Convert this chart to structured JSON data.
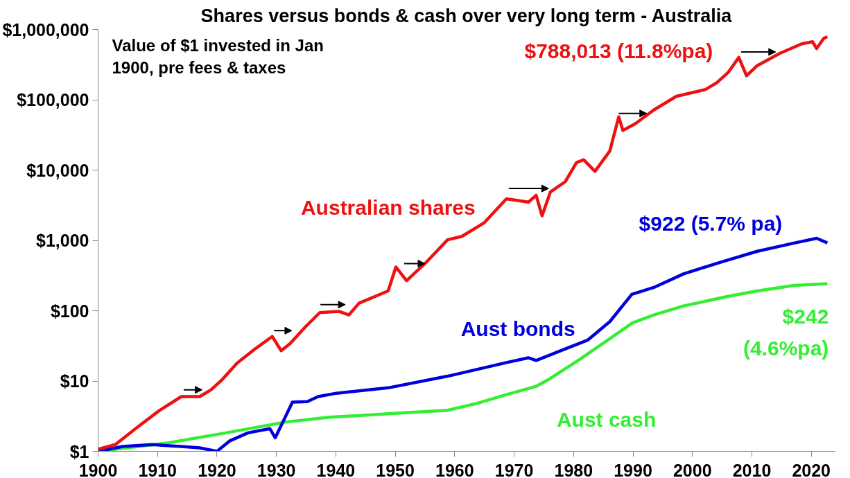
{
  "chart_data": {
    "type": "line",
    "title": "Shares versus bonds & cash over very long term - Australia",
    "xlim": [
      1900,
      2024
    ],
    "xticks": [
      1900,
      1910,
      1920,
      1930,
      1940,
      1950,
      1960,
      1970,
      1980,
      1990,
      2000,
      2010,
      2020
    ],
    "ylim": [
      1,
      1000000
    ],
    "log": "y",
    "grid": false,
    "line_style": "solid",
    "marker": "none",
    "yticks": [
      {
        "value": 1,
        "label": "$1"
      },
      {
        "value": 10,
        "label": "$10"
      },
      {
        "value": 100,
        "label": "$100"
      },
      {
        "value": 1000,
        "label": "$1,000"
      },
      {
        "value": 10000,
        "label": "$10,000"
      },
      {
        "value": 100000,
        "label": "$100,000"
      },
      {
        "value": 1000000,
        "label": "$1,000,000"
      }
    ],
    "series": [
      {
        "name": "Australian shares",
        "color": "#ee1111",
        "x": [
          1900.0,
          1902.9,
          1906.6,
          1910.3,
          1914.0,
          1917.1,
          1919.0,
          1920.9,
          1923.4,
          1926.5,
          1929.3,
          1930.8,
          1932.3,
          1934.8,
          1937.3,
          1940.5,
          1942.2,
          1943.9,
          1948.8,
          1950.1,
          1951.9,
          1955.0,
          1958.8,
          1961.2,
          1965.0,
          1968.7,
          1972.4,
          1973.7,
          1974.7,
          1976.1,
          1978.6,
          1980.5,
          1981.7,
          1983.6,
          1986.1,
          1987.6,
          1988.3,
          1990.4,
          1993.5,
          1997.3,
          2002.2,
          2004.1,
          2006.0,
          2007.8,
          2009.1,
          2010.9,
          2014.7,
          2018.4,
          2020.2,
          2020.9,
          2022.1,
          2022.7
        ],
        "values": [
          1.07,
          1.25,
          2.2,
          3.8,
          6.0,
          6.0,
          7.5,
          10.5,
          18,
          29,
          43,
          27,
          34,
          58,
          94,
          98,
          87,
          128,
          191,
          418,
          267,
          468,
          1020,
          1140,
          1790,
          3900,
          3500,
          4370,
          2240,
          4890,
          6840,
          12800,
          14000,
          9570,
          18700,
          57200,
          36600,
          45700,
          71500,
          112000,
          140000,
          175000,
          244000,
          400000,
          219000,
          306000,
          457000,
          625000,
          669000,
          535000,
          748000,
          788013
        ]
      },
      {
        "name": "Aust bonds",
        "color": "#0000dd",
        "x": [
          1900.0,
          1904.1,
          1909.1,
          1914.0,
          1917.1,
          1920.0,
          1922.1,
          1925.2,
          1928.9,
          1929.8,
          1932.7,
          1935.2,
          1937.0,
          1940.1,
          1948.8,
          1958.8,
          1968.7,
          1972.4,
          1973.7,
          1978.6,
          1982.4,
          1986.1,
          1989.8,
          1993.5,
          1998.5,
          2004.7,
          2010.9,
          2017.1,
          2020.9,
          2022.7
        ],
        "values": [
          1,
          1.17,
          1.25,
          1.17,
          1.12,
          1.0,
          1.4,
          1.83,
          2.1,
          1.56,
          5.0,
          5.1,
          6.0,
          6.7,
          8.0,
          11.7,
          18.3,
          21.4,
          19.6,
          28.6,
          38.3,
          70,
          171,
          214,
          334,
          489,
          700,
          915,
          1070,
          922
        ]
      },
      {
        "name": "Aust cash",
        "color": "#33ee33",
        "x": [
          1900.0,
          1911.6,
          1921.5,
          1931.4,
          1938.9,
          1948.8,
          1958.8,
          1963.7,
          1968.7,
          1973.7,
          1976.1,
          1981.1,
          1986.1,
          1989.9,
          1993.5,
          1998.5,
          2006.0,
          2010.9,
          2017.1,
          2022.7
        ],
        "values": [
          1,
          1.31,
          1.83,
          2.6,
          3.05,
          3.42,
          3.83,
          4.8,
          6.4,
          8.4,
          10.9,
          20.5,
          40,
          67,
          87,
          117,
          160,
          191,
          229,
          242
        ]
      }
    ],
    "annotations": [
      "Value of $1 invested in Jan\n1900, pre fees & taxes",
      "$788,013 (11.8%pa)",
      "$922 (5.7% pa)",
      "$242\n(4.6%pa)"
    ]
  }
}
